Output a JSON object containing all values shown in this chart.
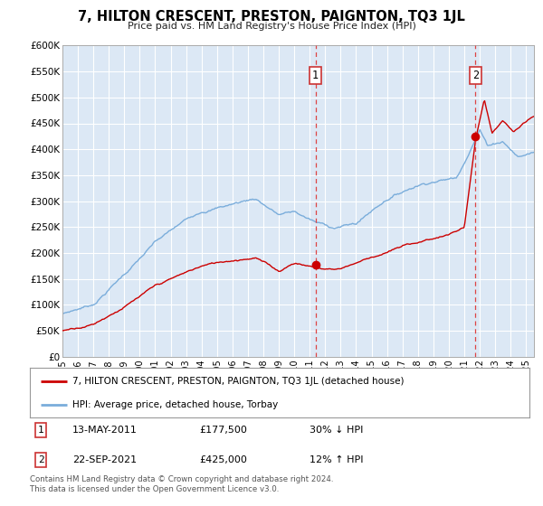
{
  "title": "7, HILTON CRESCENT, PRESTON, PAIGNTON, TQ3 1JL",
  "subtitle": "Price paid vs. HM Land Registry's House Price Index (HPI)",
  "legend_line1": "7, HILTON CRESCENT, PRESTON, PAIGNTON, TQ3 1JL (detached house)",
  "legend_line2": "HPI: Average price, detached house, Torbay",
  "sale1_label": "1",
  "sale1_date": "13-MAY-2011",
  "sale1_price": "£177,500",
  "sale1_hpi": "30% ↓ HPI",
  "sale1_year": 2011.37,
  "sale1_value": 177500,
  "sale2_label": "2",
  "sale2_date": "22-SEP-2021",
  "sale2_price": "£425,000",
  "sale2_hpi": "12% ↑ HPI",
  "sale2_year": 2021.72,
  "sale2_value": 425000,
  "vline1_x": 2011.37,
  "vline2_x": 2021.72,
  "line_color_red": "#cc0000",
  "line_color_blue": "#7aaddb",
  "marker_color": "#cc0000",
  "background_color": "#ffffff",
  "plot_bg_color": "#dce8f5",
  "grid_color": "#ffffff",
  "ylim": [
    0,
    600000
  ],
  "xlim": [
    1995,
    2025.5
  ],
  "footer": "Contains HM Land Registry data © Crown copyright and database right 2024.\nThis data is licensed under the Open Government Licence v3.0.",
  "yticks": [
    0,
    50000,
    100000,
    150000,
    200000,
    250000,
    300000,
    350000,
    400000,
    450000,
    500000,
    550000,
    600000
  ],
  "ytick_labels": [
    "£0",
    "£50K",
    "£100K",
    "£150K",
    "£200K",
    "£250K",
    "£300K",
    "£350K",
    "£400K",
    "£450K",
    "£500K",
    "£550K",
    "£600K"
  ],
  "xticks": [
    1995,
    1996,
    1997,
    1998,
    1999,
    2000,
    2001,
    2002,
    2003,
    2004,
    2005,
    2006,
    2007,
    2008,
    2009,
    2010,
    2011,
    2012,
    2013,
    2014,
    2015,
    2016,
    2017,
    2018,
    2019,
    2020,
    2021,
    2022,
    2023,
    2024,
    2025
  ]
}
